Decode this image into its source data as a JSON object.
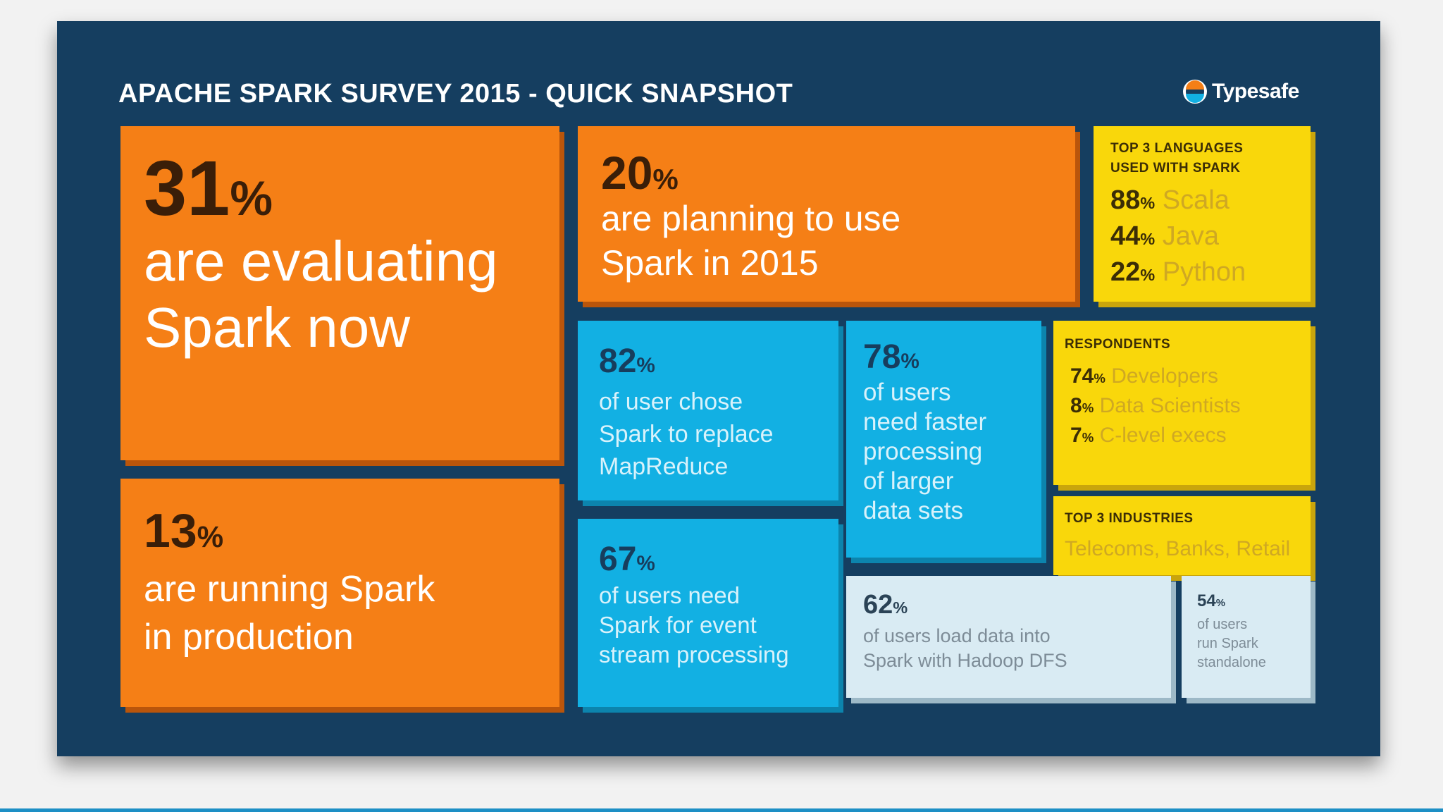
{
  "header": {
    "title": "APACHE SPARK SURVEY 2015 - QUICK SNAPSHOT",
    "brand": "Typesafe"
  },
  "tiles": {
    "evaluating": {
      "value": "31",
      "unit": "%",
      "line1": "are evaluating",
      "line2": "Spark now"
    },
    "production": {
      "value": "13",
      "unit": "%",
      "line1": "are running Spark",
      "line2": "in production"
    },
    "planning": {
      "value": "20",
      "unit": "%",
      "line1": "are planning to use",
      "line2": "Spark in 2015"
    },
    "mapreduce": {
      "value": "82",
      "unit": "%",
      "line1": "of user chose",
      "line2": "Spark to replace",
      "line3": "MapReduce"
    },
    "faster": {
      "value": "78",
      "unit": "%",
      "line1": "of users",
      "line2": "need faster",
      "line3": "processing",
      "line4": "of larger",
      "line5": "data sets"
    },
    "event": {
      "value": "67",
      "unit": "%",
      "line1": "of users need",
      "line2": "Spark for event",
      "line3": "stream processing"
    },
    "hadoop": {
      "value": "62",
      "unit": "%",
      "line1": "of users load data into",
      "line2": "Spark with Hadoop DFS"
    },
    "standalone": {
      "value": "54",
      "unit": "%",
      "line1": "of users",
      "line2": "run Spark",
      "line3": "standalone"
    }
  },
  "languages": {
    "heading1": "TOP 3 LANGUAGES",
    "heading2": "USED WITH SPARK",
    "items": [
      {
        "value": "88",
        "unit": "%",
        "label": "Scala"
      },
      {
        "value": "44",
        "unit": "%",
        "label": "Java"
      },
      {
        "value": "22",
        "unit": "%",
        "label": "Python"
      }
    ]
  },
  "respondents": {
    "heading": "RESPONDENTS",
    "items": [
      {
        "value": "74",
        "unit": "%",
        "label": "Developers"
      },
      {
        "value": "8",
        "unit": "%",
        "label": "Data Scientists"
      },
      {
        "value": "7",
        "unit": "%",
        "label": "C-level execs"
      }
    ]
  },
  "industries": {
    "heading": "TOP 3 INDUSTRIES",
    "text": "Telecoms, Banks, Retail"
  },
  "colors": {
    "board": "#153e60",
    "orange": "#f57f16",
    "blue": "#12b0e3",
    "yellow": "#f9d70b",
    "pale": "#d9ebf3"
  }
}
